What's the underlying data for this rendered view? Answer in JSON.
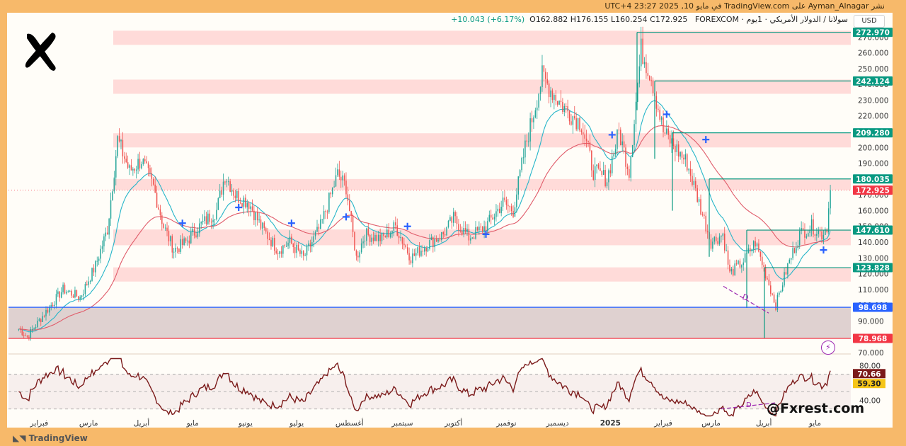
{
  "header": {
    "publisher_line": "نشر Ayman_Alnagar على TradingView.com في مايو 10, 2025 23:27 UTC+4"
  },
  "symbol": {
    "name": "سولانا / الدولار الأمريكي · 1يوم · FOREXCOM",
    "ohlc": "O162.882  H176.155  L160.254  C172.925",
    "change": "+10.043 (+6.17%)"
  },
  "currency_button": "USD",
  "watermark": "@Fxrest.com",
  "brand": "TradingView",
  "colors": {
    "up": "#26a69a",
    "down": "#ef5350",
    "ema_fast": "#26b5c9",
    "ema_slow": "#e05c6a",
    "zone": "#ffcfcf",
    "support_blue": "#2962ff",
    "support_red": "#f23645",
    "level_green": "#089981",
    "rsi_line": "#7b1a1a",
    "divergence": "#9c27b0"
  },
  "chart_data": [
    {
      "type": "candlestick",
      "title": "",
      "x_tick_labels": [
        "فبراير",
        "مارس",
        "أبريل",
        "مايو",
        "يونيو",
        "يوليو",
        "أغسطس",
        "سبتمبر",
        "أكتوبر",
        "نوفمبر",
        "ديسمبر",
        "2025",
        "فبراير",
        "مارس",
        "أبريل",
        "مايو"
      ],
      "y_tick_labels": [
        "70.000",
        "80.000",
        "90.000",
        "100.000",
        "110.000",
        "120.000",
        "130.000",
        "140.000",
        "150.000",
        "160.000",
        "170.000",
        "180.000",
        "190.000",
        "200.000",
        "210.000",
        "220.000",
        "230.000",
        "240.000",
        "250.000",
        "260.000",
        "270.000"
      ],
      "ylim": [
        70,
        280
      ],
      "price_path": [
        [
          "2024-01-20",
          85
        ],
        [
          "2024-01-25",
          80
        ],
        [
          "2024-02-05",
          96
        ],
        [
          "2024-02-15",
          110
        ],
        [
          "2024-02-25",
          105
        ],
        [
          "2024-03-05",
          125
        ],
        [
          "2024-03-12",
          148
        ],
        [
          "2024-03-18",
          205
        ],
        [
          "2024-03-25",
          185
        ],
        [
          "2024-04-01",
          192
        ],
        [
          "2024-04-08",
          175
        ],
        [
          "2024-04-14",
          150
        ],
        [
          "2024-04-20",
          135
        ],
        [
          "2024-04-27",
          140
        ],
        [
          "2024-05-05",
          150
        ],
        [
          "2024-05-15",
          160
        ],
        [
          "2024-05-20",
          183
        ],
        [
          "2024-05-26",
          170
        ],
        [
          "2024-06-03",
          165
        ],
        [
          "2024-06-10",
          150
        ],
        [
          "2024-06-20",
          135
        ],
        [
          "2024-06-27",
          140
        ],
        [
          "2024-07-05",
          130
        ],
        [
          "2024-07-15",
          150
        ],
        [
          "2024-07-25",
          183
        ],
        [
          "2024-07-30",
          175
        ],
        [
          "2024-08-05",
          130
        ],
        [
          "2024-08-10",
          145
        ],
        [
          "2024-08-20",
          142
        ],
        [
          "2024-08-28",
          150
        ],
        [
          "2024-09-06",
          130
        ],
        [
          "2024-09-15",
          138
        ],
        [
          "2024-09-25",
          145
        ],
        [
          "2024-10-01",
          155
        ],
        [
          "2024-10-10",
          143
        ],
        [
          "2024-10-20",
          150
        ],
        [
          "2024-10-30",
          165
        ],
        [
          "2024-11-05",
          160
        ],
        [
          "2024-11-12",
          200
        ],
        [
          "2024-11-22",
          245
        ],
        [
          "2024-11-28",
          235
        ],
        [
          "2024-12-05",
          225
        ],
        [
          "2024-12-15",
          215
        ],
        [
          "2024-12-22",
          185
        ],
        [
          "2024-12-30",
          180
        ],
        [
          "2025-01-06",
          210
        ],
        [
          "2025-01-12",
          185
        ],
        [
          "2025-01-19",
          262
        ],
        [
          "2025-01-25",
          245
        ],
        [
          "2025-02-01",
          210
        ],
        [
          "2025-02-08",
          200
        ],
        [
          "2025-02-15",
          190
        ],
        [
          "2025-02-22",
          165
        ],
        [
          "2025-03-01",
          140
        ],
        [
          "2025-03-08",
          145
        ],
        [
          "2025-03-12",
          120
        ],
        [
          "2025-03-20",
          128
        ],
        [
          "2025-03-27",
          140
        ],
        [
          "2025-04-02",
          120
        ],
        [
          "2025-04-08",
          100
        ],
        [
          "2025-04-15",
          125
        ],
        [
          "2025-04-22",
          145
        ],
        [
          "2025-04-29",
          150
        ],
        [
          "2025-05-05",
          145
        ],
        [
          "2025-05-08",
          150
        ],
        [
          "2025-05-10",
          172.925
        ]
      ],
      "horizontal_levels": [
        {
          "label": "272.970",
          "value": 272.97,
          "kind": "resistance"
        },
        {
          "label": "242.124",
          "value": 242.124,
          "kind": "resistance"
        },
        {
          "label": "209.280",
          "value": 209.28,
          "kind": "resistance"
        },
        {
          "label": "180.035",
          "value": 180.035,
          "kind": "resistance"
        },
        {
          "label": "172.925",
          "value": 172.925,
          "kind": "last_price"
        },
        {
          "label": "147.610",
          "value": 147.61,
          "kind": "support"
        },
        {
          "label": "123.828",
          "value": 123.828,
          "kind": "support"
        },
        {
          "label": "98.698",
          "value": 98.698,
          "kind": "major_support"
        },
        {
          "label": "78.968",
          "value": 78.968,
          "kind": "floor"
        }
      ],
      "zones": [
        {
          "from": 265,
          "to": 274
        },
        {
          "from": 234,
          "to": 243
        },
        {
          "from": 200,
          "to": 209
        },
        {
          "from": 173,
          "to": 180
        },
        {
          "from": 138,
          "to": 148
        },
        {
          "from": 115,
          "to": 124
        },
        {
          "from": 79,
          "to": 99
        }
      ],
      "divergence_label": "D",
      "legend": "none",
      "grid": false
    },
    {
      "type": "line",
      "title": "",
      "y_tick_labels": [
        "80.00",
        "40.00"
      ],
      "ylim": [
        20,
        90
      ],
      "current_value": "70.66",
      "ma_value": "59.30",
      "bands": [
        70,
        50,
        30
      ],
      "divergence_label": "D"
    }
  ]
}
